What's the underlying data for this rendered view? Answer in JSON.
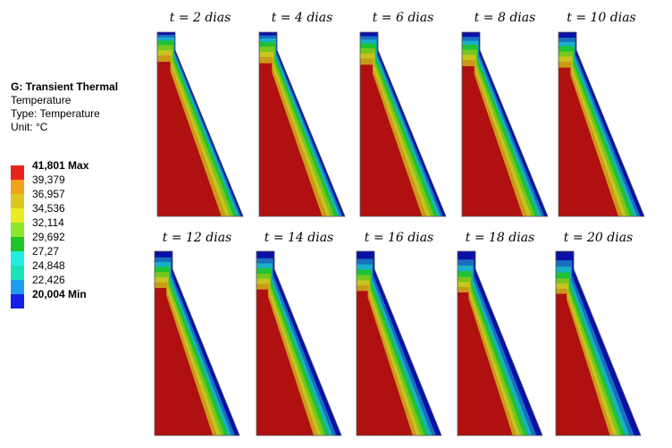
{
  "legend": {
    "analysis": "G: Transient Thermal",
    "quantity": "Temperature",
    "type_line": "Type: Temperature",
    "unit_line": "Unit: °C",
    "levels": [
      {
        "label": "41,801 Max",
        "color": "#e8231e",
        "bold": true
      },
      {
        "label": "39,379",
        "color": "#f0a41c",
        "bold": false
      },
      {
        "label": "36,957",
        "color": "#dcc81e",
        "bold": false
      },
      {
        "label": "34,536",
        "color": "#e8ec21",
        "bold": false
      },
      {
        "label": "32,114",
        "color": "#8ae62c",
        "bold": false
      },
      {
        "label": "29,692",
        "color": "#22c42a",
        "bold": false
      },
      {
        "label": "27,27",
        "color": "#23ece2",
        "bold": false
      },
      {
        "label": "24,848",
        "color": "#1ce2b8",
        "bold": false
      },
      {
        "label": "22,426",
        "color": "#1f9cf0",
        "bold": false
      },
      {
        "label": "20,004 Min",
        "color": "#1420e6",
        "bold": true
      }
    ]
  },
  "panels": [
    {
      "title": "t = 2 dias",
      "levels": [
        0.55,
        0.62,
        0.55,
        0.4,
        0.3,
        0.22,
        0.15
      ]
    },
    {
      "title": "t = 4 dias",
      "levels": [
        0.62,
        0.7,
        0.62,
        0.5,
        0.42,
        0.32,
        0.22
      ]
    },
    {
      "title": "t = 6 dias",
      "levels": [
        0.7,
        0.76,
        0.66,
        0.55,
        0.46,
        0.36,
        0.26
      ]
    },
    {
      "title": "t = 8 dias",
      "levels": [
        0.78,
        0.82,
        0.7,
        0.58,
        0.48,
        0.38,
        0.3
      ]
    },
    {
      "title": "t = 10 dias",
      "levels": [
        0.82,
        0.86,
        0.74,
        0.62,
        0.52,
        0.42,
        0.34
      ]
    },
    {
      "title": "t = 12 dias",
      "levels": [
        0.85,
        0.88,
        0.76,
        0.66,
        0.56,
        0.46,
        0.38
      ]
    },
    {
      "title": "t = 14 dias",
      "levels": [
        0.87,
        0.9,
        0.8,
        0.7,
        0.6,
        0.5,
        0.42
      ]
    },
    {
      "title": "t = 16 dias",
      "levels": [
        0.89,
        0.92,
        0.82,
        0.72,
        0.62,
        0.52,
        0.44
      ]
    },
    {
      "title": "t = 18 dias",
      "levels": [
        0.9,
        0.93,
        0.84,
        0.74,
        0.64,
        0.54,
        0.46
      ]
    },
    {
      "title": "t = 20 dias",
      "levels": [
        0.91,
        0.94,
        0.86,
        0.76,
        0.66,
        0.56,
        0.48
      ]
    }
  ],
  "palette": [
    "#0a10a8",
    "#1a6fbf",
    "#18b0c8",
    "#1fd4c0",
    "#1fc232",
    "#77c71e",
    "#c8c31f",
    "#c99a16",
    "#b57a12",
    "#b01010"
  ]
}
